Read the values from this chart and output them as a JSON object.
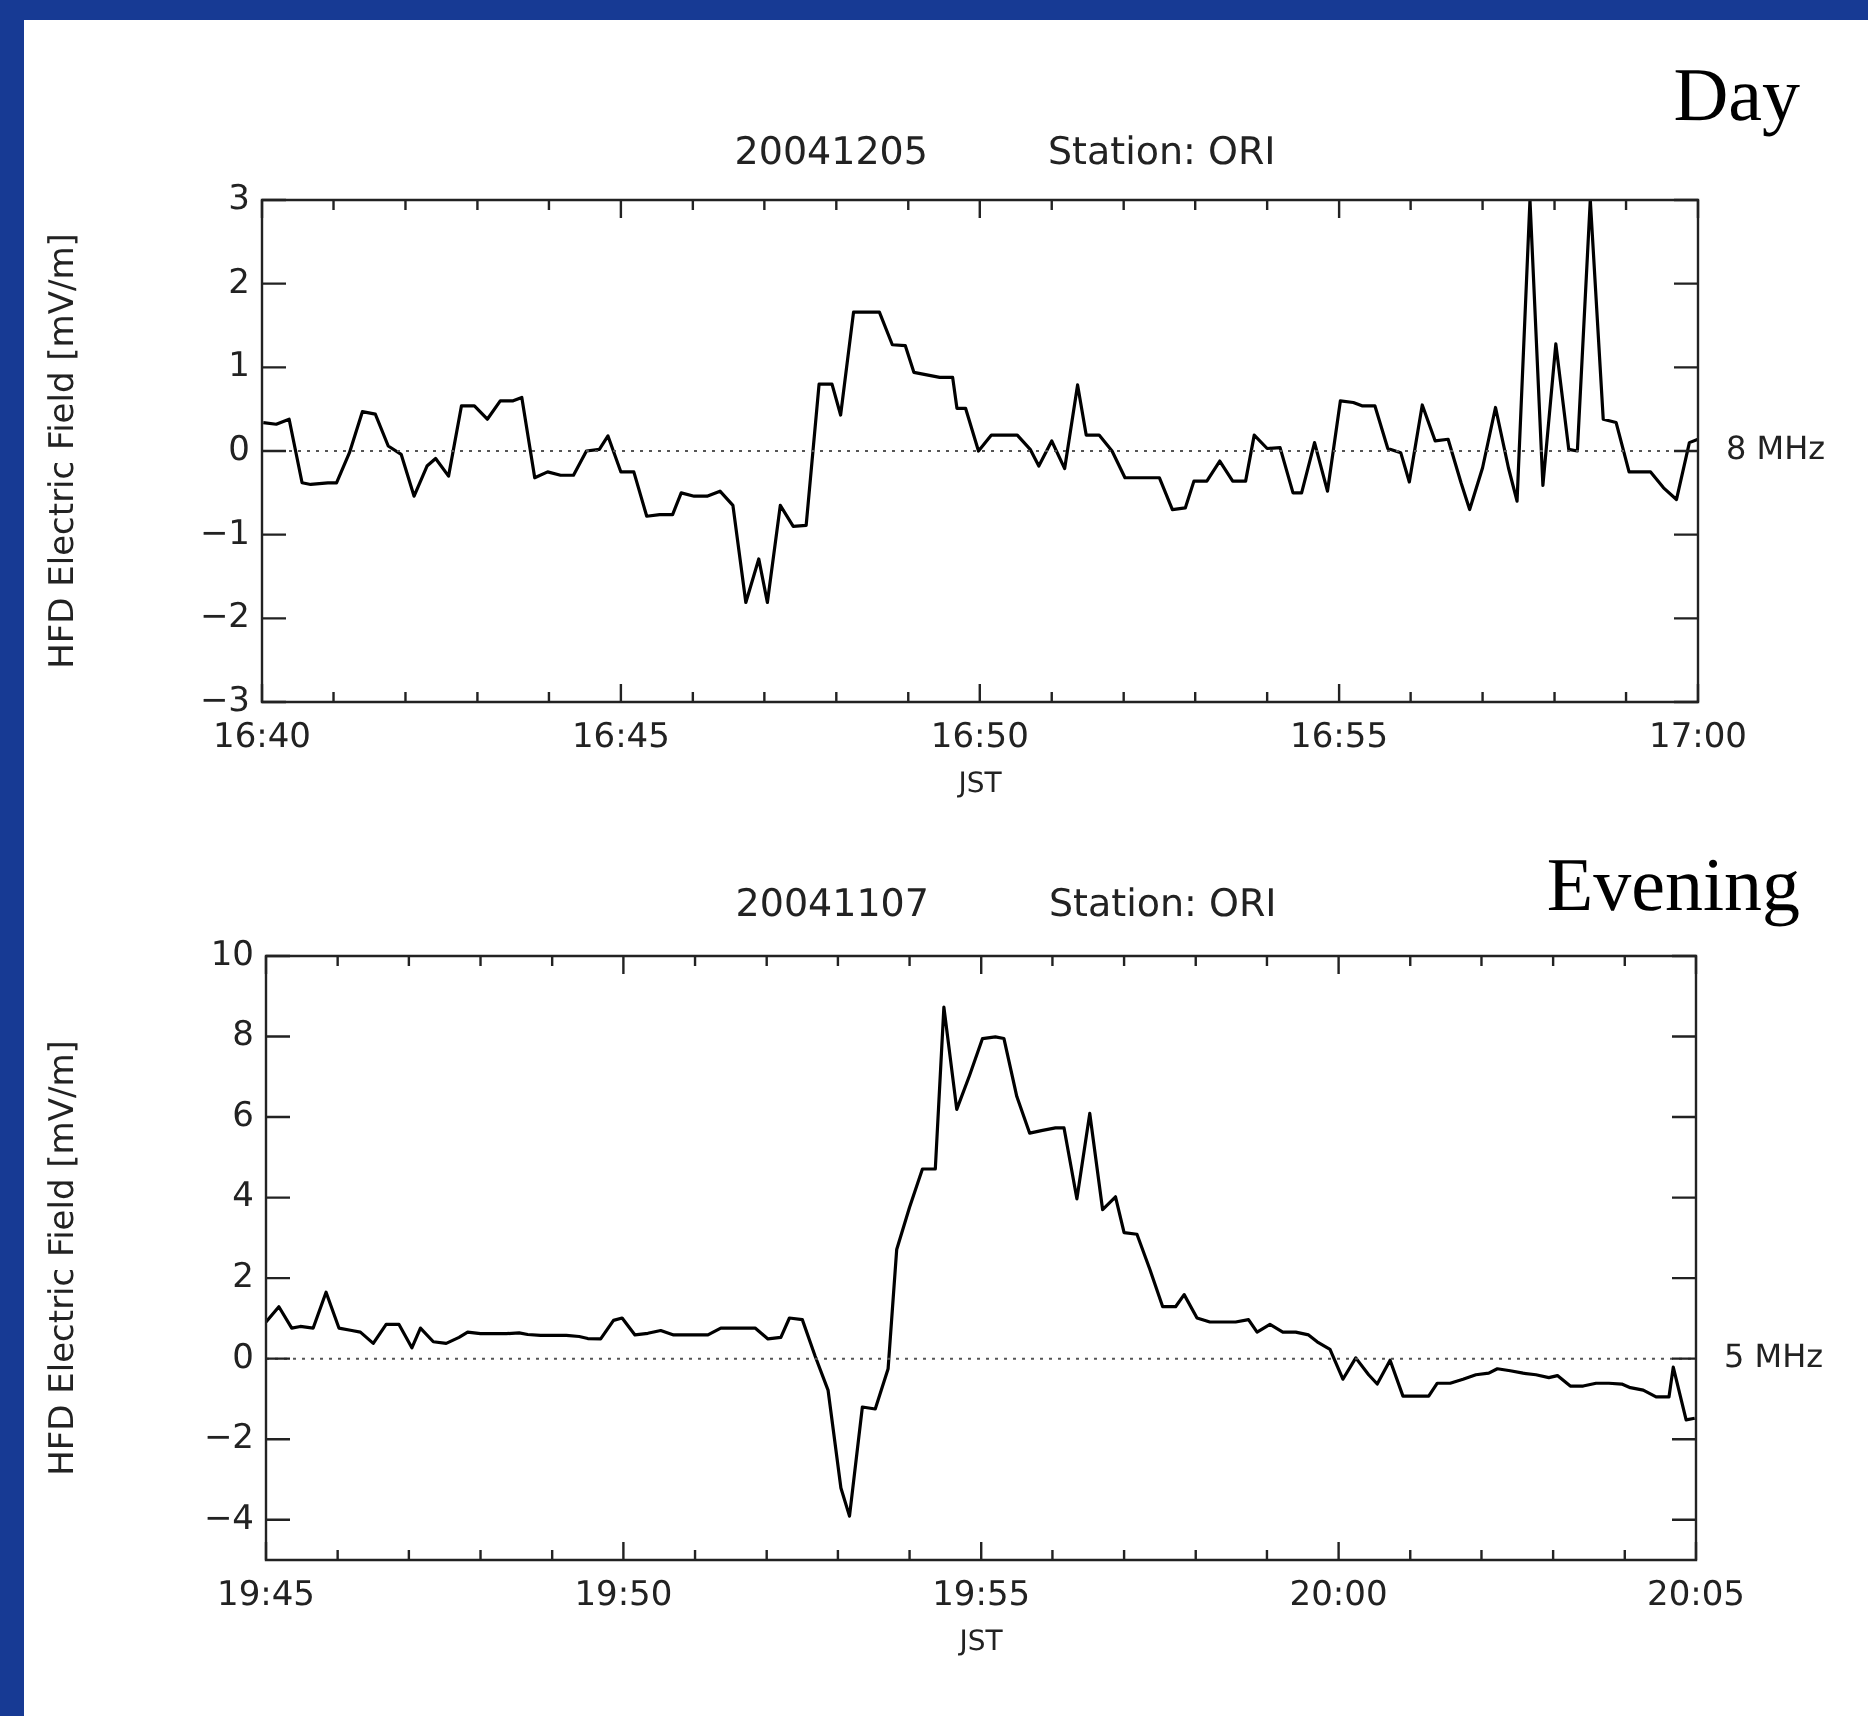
{
  "chart_data": [
    {
      "type": "line",
      "title": "20041205",
      "subtitle": "Station: ORI",
      "xlabel": "JST",
      "ylabel": "HFD Electric Field [mV/m]",
      "annotations": [
        "Day"
      ],
      "xlim": [
        16.6667,
        17
      ],
      "xticks": [
        {
          "value": 16.6667,
          "label": "16:40"
        },
        {
          "value": 16.6833,
          "label": null
        },
        {
          "value": 16.7,
          "label": null
        },
        {
          "value": 16.7167,
          "label": null
        },
        {
          "value": 16.7333,
          "label": null
        },
        {
          "value": 16.75,
          "label": "16:45"
        },
        {
          "value": 16.7667,
          "label": null
        },
        {
          "value": 16.7833,
          "label": null
        },
        {
          "value": 16.8,
          "label": null
        },
        {
          "value": 16.8167,
          "label": null
        },
        {
          "value": 16.8333,
          "label": "16:50"
        },
        {
          "value": 16.85,
          "label": null
        },
        {
          "value": 16.8667,
          "label": null
        },
        {
          "value": 16.8833,
          "label": null
        },
        {
          "value": 16.9,
          "label": null
        },
        {
          "value": 16.9167,
          "label": "16:55"
        },
        {
          "value": 16.9333,
          "label": null
        },
        {
          "value": 16.95,
          "label": null
        },
        {
          "value": 16.9667,
          "label": null
        },
        {
          "value": 16.9833,
          "label": null
        },
        {
          "value": 17,
          "label": "17:00"
        }
      ],
      "ylim": [
        -3,
        3
      ],
      "yticks": [
        -3,
        -2,
        -1,
        0,
        1,
        2,
        3
      ],
      "ref_lines": [
        {
          "axis": "y",
          "value": 0,
          "label": "8 MHz",
          "line_style": "dotted",
          "color": "#555555"
        }
      ],
      "series": [
        {
          "color": "#000000",
          "x": [
            16.667,
            16.67,
            16.673,
            16.676,
            16.678,
            16.682,
            16.684,
            16.687,
            16.69,
            16.693,
            16.696,
            16.699,
            16.702,
            16.705,
            16.707,
            16.71,
            16.713,
            16.716,
            16.719,
            16.722,
            16.725,
            16.727,
            16.73,
            16.733,
            16.736,
            16.739,
            16.742,
            16.745,
            16.747,
            16.75,
            16.753,
            16.756,
            16.759,
            16.762,
            16.764,
            16.767,
            16.77,
            16.773,
            16.776,
            16.779,
            16.782,
            16.784,
            16.787,
            16.79,
            16.793,
            16.796,
            16.799,
            16.801,
            16.804,
            16.807,
            16.81,
            16.813,
            16.816,
            16.818,
            16.821,
            16.824,
            16.827,
            16.828,
            16.83,
            16.833,
            16.836,
            16.839,
            16.842,
            16.845,
            16.847,
            16.85,
            16.853,
            16.856,
            16.858,
            16.861,
            16.864,
            16.867,
            16.87,
            16.872,
            16.875,
            16.878,
            16.881,
            16.883,
            16.886,
            16.889,
            16.892,
            16.895,
            16.897,
            16.9,
            16.903,
            16.906,
            16.908,
            16.911,
            16.914,
            16.917,
            16.92,
            16.922,
            16.925,
            16.928,
            16.931,
            16.933,
            16.936,
            16.939,
            16.942,
            16.945,
            16.947,
            16.95,
            16.953,
            16.956,
            16.958,
            16.961,
            16.964,
            16.967,
            16.97,
            16.972,
            16.975,
            16.978,
            16.981,
            16.984,
            16.987,
            16.989,
            16.992,
            16.995,
            16.998,
            17.0
          ],
          "values": [
            0.34,
            0.32,
            0.38,
            -0.38,
            -0.4,
            -0.38,
            -0.38,
            -0.02,
            0.47,
            0.44,
            0.06,
            -0.04,
            -0.54,
            -0.18,
            -0.09,
            -0.3,
            0.54,
            0.54,
            0.38,
            0.6,
            0.6,
            0.64,
            -0.32,
            -0.25,
            -0.29,
            -0.29,
            0.0,
            0.02,
            0.18,
            -0.25,
            -0.25,
            -0.78,
            -0.76,
            -0.76,
            -0.5,
            -0.54,
            -0.54,
            -0.48,
            -0.65,
            -1.81,
            -1.29,
            -1.81,
            -0.65,
            -0.9,
            -0.89,
            0.8,
            0.8,
            0.43,
            1.66,
            1.66,
            1.66,
            1.27,
            1.26,
            0.94,
            0.91,
            0.88,
            0.88,
            0.51,
            0.51,
            0.0,
            0.19,
            0.19,
            0.19,
            0.02,
            -0.18,
            0.12,
            -0.21,
            0.79,
            0.19,
            0.19,
            0.0,
            -0.32,
            -0.32,
            -0.32,
            -0.32,
            -0.7,
            -0.68,
            -0.36,
            -0.36,
            -0.12,
            -0.36,
            -0.36,
            0.19,
            0.03,
            0.04,
            -0.5,
            -0.5,
            0.1,
            -0.48,
            0.6,
            0.58,
            0.54,
            0.54,
            0.03,
            -0.02,
            -0.37,
            0.55,
            0.12,
            0.14,
            -0.38,
            -0.7,
            -0.2,
            0.52,
            -0.2,
            -0.6,
            3,
            -0.41,
            1.28,
            0.02,
            0.0,
            3,
            0.38,
            0.34,
            -0.25,
            -0.25,
            -0.25,
            -0.44,
            -0.58,
            0.1,
            0.14
          ]
        }
      ]
    },
    {
      "type": "line",
      "title": "20041107",
      "subtitle": "Station: ORI",
      "xlabel": "JST",
      "ylabel": "HFD Electric Field [mV/m]",
      "annotations": [
        "Evening"
      ],
      "xlim": [
        19.75,
        20.0833
      ],
      "xticks": [
        {
          "value": 19.75,
          "label": "19:45"
        },
        {
          "value": 19.7667,
          "label": null
        },
        {
          "value": 19.7833,
          "label": null
        },
        {
          "value": 19.8,
          "label": null
        },
        {
          "value": 19.8167,
          "label": null
        },
        {
          "value": 19.8333,
          "label": "19:50"
        },
        {
          "value": 19.85,
          "label": null
        },
        {
          "value": 19.8667,
          "label": null
        },
        {
          "value": 19.8833,
          "label": null
        },
        {
          "value": 19.9,
          "label": null
        },
        {
          "value": 19.9167,
          "label": "19:55"
        },
        {
          "value": 19.9333,
          "label": null
        },
        {
          "value": 19.95,
          "label": null
        },
        {
          "value": 19.9667,
          "label": null
        },
        {
          "value": 19.9833,
          "label": null
        },
        {
          "value": 20,
          "label": "20:00"
        },
        {
          "value": 20.0167,
          "label": null
        },
        {
          "value": 20.0333,
          "label": null
        },
        {
          "value": 20.05,
          "label": null
        },
        {
          "value": 20.0667,
          "label": null
        },
        {
          "value": 20.0833,
          "label": "20:05"
        }
      ],
      "ylim": [
        -5,
        10
      ],
      "yticks": [
        -4,
        -2,
        0,
        2,
        4,
        6,
        8,
        10
      ],
      "ref_lines": [
        {
          "axis": "y",
          "value": 0,
          "label": "5 MHz",
          "line_style": "dotted",
          "color": "#555555"
        }
      ],
      "series": [
        {
          "color": "#000000",
          "x": [
            19.75,
            19.753,
            19.756,
            19.758,
            19.761,
            19.764,
            19.767,
            19.77,
            19.772,
            19.775,
            19.778,
            19.781,
            19.784,
            19.786,
            19.789,
            19.792,
            19.795,
            19.797,
            19.8,
            19.803,
            19.806,
            19.809,
            19.811,
            19.814,
            19.817,
            19.82,
            19.823,
            19.825,
            19.828,
            19.831,
            19.833,
            19.836,
            19.839,
            19.842,
            19.845,
            19.847,
            19.85,
            19.853,
            19.856,
            19.858,
            19.861,
            19.864,
            19.867,
            19.87,
            19.872,
            19.875,
            19.878,
            19.881,
            19.884,
            19.886,
            19.889,
            19.892,
            19.895,
            19.897,
            19.9,
            19.903,
            19.906,
            19.908,
            19.911,
            19.914,
            19.917,
            19.92,
            19.922,
            19.925,
            19.928,
            19.931,
            19.934,
            19.936,
            19.939,
            19.942,
            19.945,
            19.948,
            19.95,
            19.953,
            19.956,
            19.959,
            19.962,
            19.964,
            19.967,
            19.97,
            19.973,
            19.976,
            19.979,
            19.981,
            19.984,
            19.987,
            19.99,
            19.993,
            19.995,
            19.998,
            20.001,
            20.004,
            20.007,
            20.009,
            20.012,
            20.015,
            20.018,
            20.021,
            20.023,
            20.026,
            20.029,
            20.032,
            20.035,
            20.037,
            20.04,
            20.043,
            20.046,
            20.049,
            20.051,
            20.054,
            20.057,
            20.06,
            20.063,
            20.066,
            20.068,
            20.071,
            20.074,
            20.077,
            20.078,
            20.081,
            20.083
          ],
          "values": [
            0.91,
            1.29,
            0.76,
            0.8,
            0.76,
            1.65,
            0.76,
            0.7,
            0.66,
            0.38,
            0.85,
            0.85,
            0.27,
            0.76,
            0.42,
            0.38,
            0.53,
            0.66,
            0.62,
            0.62,
            0.62,
            0.64,
            0.6,
            0.58,
            0.58,
            0.58,
            0.55,
            0.5,
            0.49,
            0.95,
            1.01,
            0.59,
            0.63,
            0.7,
            0.59,
            0.59,
            0.59,
            0.59,
            0.76,
            0.76,
            0.76,
            0.76,
            0.49,
            0.53,
            1.01,
            0.97,
            0.06,
            -0.78,
            -3.21,
            -3.91,
            -1.2,
            -1.25,
            -0.25,
            2.71,
            3.76,
            4.71,
            4.71,
            8.73,
            6.19,
            7.04,
            7.95,
            7.99,
            7.95,
            6.51,
            5.6,
            5.67,
            5.73,
            5.73,
            3.97,
            6.09,
            3.7,
            4.02,
            3.13,
            3.09,
            2.22,
            1.29,
            1.29,
            1.59,
            1.01,
            0.91,
            0.91,
            0.91,
            0.97,
            0.66,
            0.85,
            0.66,
            0.66,
            0.59,
            0.42,
            0.23,
            -0.51,
            0.02,
            -0.4,
            -0.63,
            -0.04,
            -0.93,
            -0.93,
            -0.93,
            -0.61,
            -0.61,
            -0.51,
            -0.4,
            -0.36,
            -0.25,
            -0.3,
            -0.36,
            -0.4,
            -0.47,
            -0.42,
            -0.68,
            -0.68,
            -0.61,
            -0.61,
            -0.63,
            -0.72,
            -0.78,
            -0.95,
            -0.95,
            -0.21,
            -1.52,
            -1.48
          ]
        }
      ]
    }
  ]
}
